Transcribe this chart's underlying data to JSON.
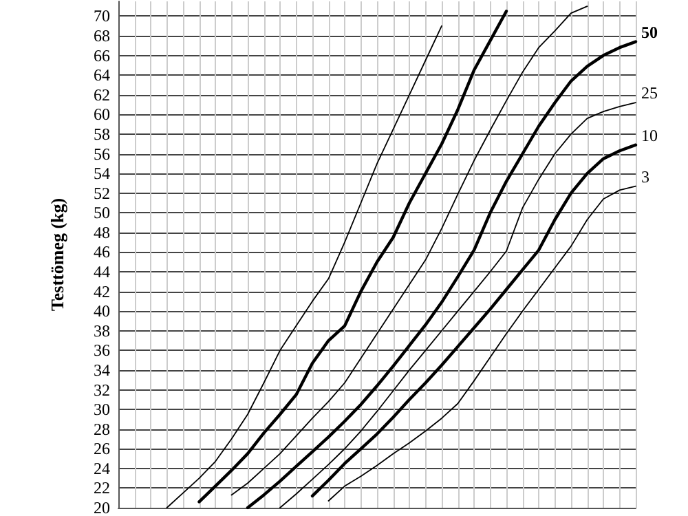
{
  "chart_data": {
    "type": "line",
    "ylabel": "Testtömeg (kg)",
    "categories": [
      null,
      null,
      null,
      null,
      null,
      null,
      null,
      null,
      null,
      null,
      null,
      null,
      null,
      null,
      null,
      null,
      null,
      null,
      null,
      null,
      null,
      null,
      null,
      null,
      null,
      null,
      null,
      null,
      null,
      null,
      null,
      null,
      null
    ],
    "series": [
      {
        "color": "#000000",
        "values": [
          null,
          null,
          null,
          20,
          21.5,
          23,
          24.7,
          27,
          29.5,
          32.7,
          36,
          38.5,
          41,
          43.3,
          47,
          51,
          55,
          58.5,
          62,
          65.5,
          69,
          null,
          null,
          null,
          null,
          null,
          null,
          null,
          null,
          null,
          null,
          null,
          null
        ]
      },
      {
        "color": "#000000",
        "values": [
          null,
          null,
          null,
          null,
          null,
          20.6,
          22.2,
          23.8,
          25.5,
          27.6,
          29.5,
          31.5,
          34.7,
          37,
          38.5,
          42,
          45,
          47.5,
          51,
          54,
          57,
          60.5,
          64.5,
          67.5,
          70.5,
          null,
          null,
          null,
          null,
          null,
          null,
          null,
          null
        ]
      },
      {
        "color": "#000000",
        "values": [
          null,
          null,
          null,
          null,
          null,
          null,
          null,
          21.3,
          22.5,
          24,
          25.5,
          27.3,
          29.1,
          30.8,
          32.7,
          35.2,
          37.7,
          40.2,
          42.7,
          45.2,
          48.4,
          51.9,
          55.3,
          58.4,
          61.4,
          64.3,
          66.8,
          68.5,
          70.3,
          71,
          null,
          null,
          null
        ]
      },
      {
        "name": "50",
        "color": "#000000",
        "values": [
          null,
          null,
          null,
          null,
          null,
          null,
          null,
          null,
          20,
          21.3,
          22.7,
          24.2,
          25.7,
          27.2,
          28.8,
          30.5,
          32.4,
          34.4,
          36.5,
          38.6,
          40.9,
          43.5,
          46.2,
          50,
          53.2,
          56,
          58.8,
          61.2,
          63.4,
          64.9,
          66,
          66.8,
          67.4
        ]
      },
      {
        "name": "25",
        "color": "#000000",
        "values": [
          null,
          null,
          null,
          null,
          null,
          null,
          null,
          null,
          null,
          null,
          20,
          21.4,
          22.9,
          24.4,
          26,
          27.8,
          29.8,
          31.9,
          34,
          36,
          38,
          40,
          42,
          44,
          46.1,
          50.5,
          53.4,
          56,
          58,
          59.6,
          60.3,
          60.8,
          61.2
        ]
      },
      {
        "name": "10",
        "color": "#000000",
        "values": [
          null,
          null,
          null,
          null,
          null,
          null,
          null,
          null,
          null,
          null,
          null,
          null,
          21.2,
          22.8,
          24.5,
          26,
          27.5,
          29.2,
          31,
          32.7,
          34.5,
          36.4,
          38.3,
          40.2,
          42.2,
          44.2,
          46.2,
          49.3,
          52,
          54,
          55.5,
          56.3,
          56.9
        ]
      },
      {
        "name": "3",
        "color": "#000000",
        "values": [
          null,
          null,
          null,
          null,
          null,
          null,
          null,
          null,
          null,
          null,
          null,
          null,
          null,
          20.7,
          22.2,
          23.2,
          24.3,
          25.5,
          26.6,
          27.8,
          29.1,
          30.6,
          32.9,
          35.3,
          37.7,
          40,
          42.2,
          44.4,
          46.6,
          49.3,
          51.4,
          52.3,
          52.7
        ]
      }
    ],
    "ylim": [
      20,
      71.5
    ],
    "yticks": [
      20,
      22,
      24,
      26,
      28,
      30,
      32,
      34,
      36,
      38,
      40,
      42,
      44,
      46,
      48,
      50,
      52,
      54,
      56,
      58,
      60,
      62,
      64,
      66,
      68,
      70
    ],
    "grid": true,
    "tick_labels": "y",
    "marker": "none",
    "line_style": "solid",
    "legend": false
  }
}
